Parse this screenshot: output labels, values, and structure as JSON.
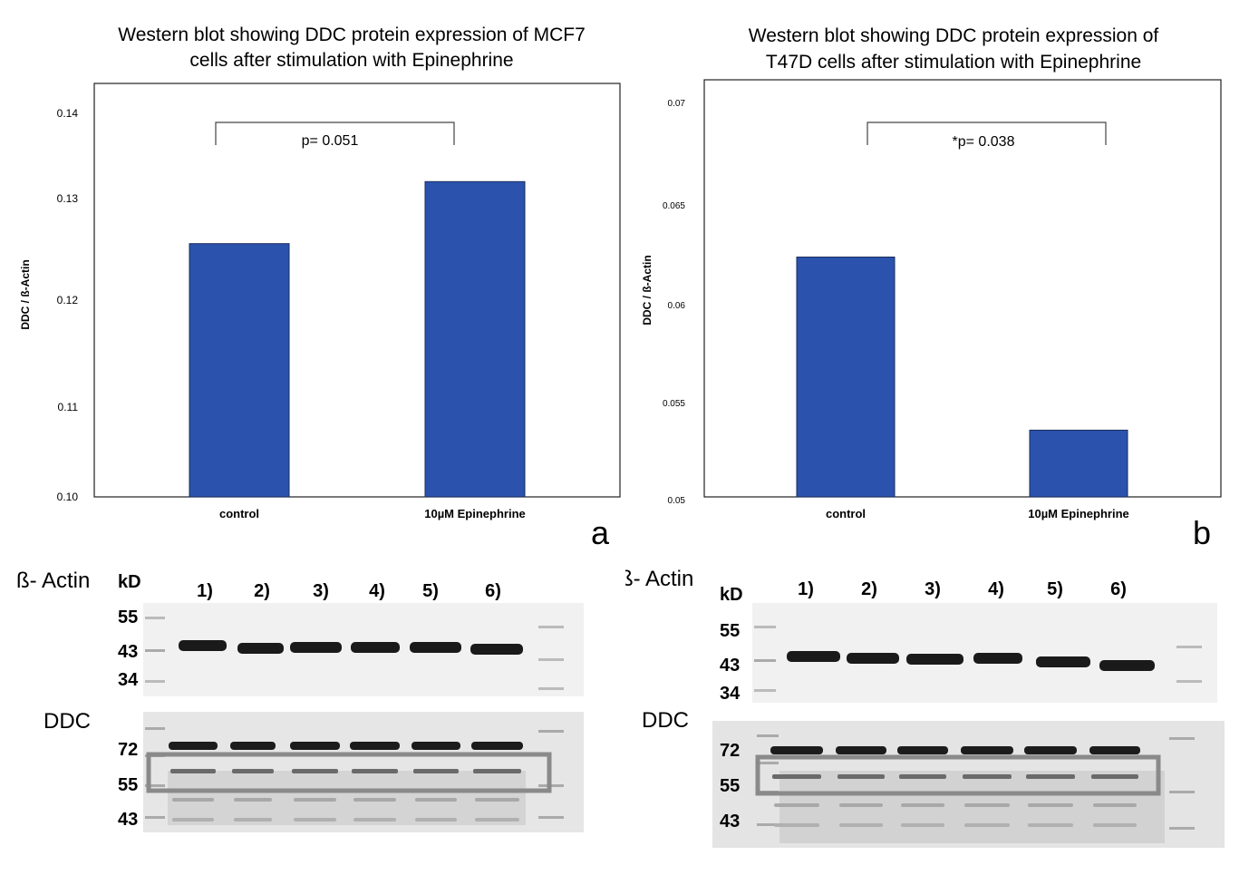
{
  "colors": {
    "bar": "#2b53ad",
    "bar_stroke": "#1a2c5c",
    "axis": "#222222"
  },
  "chart_data": [
    {
      "type": "bar",
      "title": "Western blot showing DDC protein expression of MCF7 cells after stimulation with Epinephrine",
      "title_lines": [
        "Western blot showing DDC protein expression of MCF7",
        "cells after stimulation with Epinephrine"
      ],
      "xlabel": "",
      "ylabel": "DDC / ß-Actin",
      "categories": [
        "control",
        "10µM Epinephrine"
      ],
      "values": [
        0.1245,
        0.1305
      ],
      "ylim": [
        0.1,
        0.14
      ],
      "yticks": [
        "0.10",
        "0.11",
        "0.12",
        "0.13",
        "0.14"
      ],
      "significance": "p= 0.051",
      "panel_letter": "a"
    },
    {
      "type": "bar",
      "title": "Western blot showing DDC protein expression of T47D cells after stimulation with Epinephrine",
      "title_lines": [
        "Western blot showing DDC protein expression of",
        "T47D cells after stimulation with Epinephrine"
      ],
      "xlabel": "",
      "ylabel": "DDC / ß-Actin",
      "categories": [
        "control",
        "10µM Epinephrine"
      ],
      "values": [
        0.0615,
        0.0532
      ],
      "ylim": [
        0.05,
        0.07
      ],
      "yticks": [
        "0.05",
        "0.055",
        "0.06",
        "0.065",
        "0.07"
      ],
      "significance": "*p= 0.038",
      "panel_letter": "b"
    }
  ],
  "blots": [
    {
      "actin_label": "ß- Actin",
      "ddc_label": "DDC",
      "kd_label": "kD",
      "lanes": [
        "1)",
        "2)",
        "3)",
        "4)",
        "5)",
        "6)"
      ],
      "actin_markers": [
        "55",
        "43",
        "34"
      ],
      "ddc_markers": [
        "72",
        "55",
        "43"
      ]
    },
    {
      "actin_label": "ß- Actin",
      "ddc_label": "DDC",
      "kd_label": "kD",
      "lanes": [
        "1)",
        "2)",
        "3)",
        "4)",
        "5)",
        "6)"
      ],
      "actin_markers": [
        "55",
        "43",
        "34"
      ],
      "ddc_markers": [
        "72",
        "55",
        "43"
      ]
    }
  ]
}
